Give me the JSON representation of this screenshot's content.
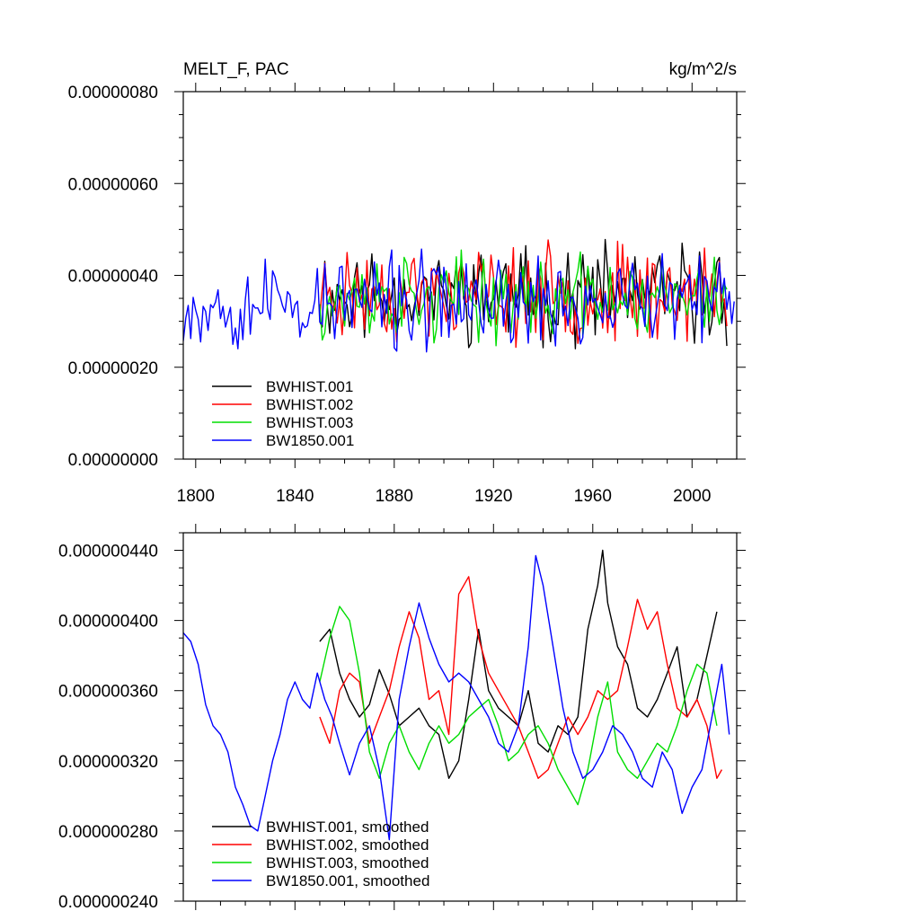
{
  "chart_data": [
    {
      "type": "line",
      "title": "MELT_F, PAC",
      "units": "kg/m^2/s",
      "xlim": [
        1795,
        2018
      ],
      "ylim": [
        0.0,
        8e-07
      ],
      "x_ticks": [
        1800,
        1840,
        1880,
        1920,
        1960,
        2000
      ],
      "x_tick_labels": [
        "1800",
        "1840",
        "1880",
        "1920",
        "1960",
        "2000"
      ],
      "y_ticks": [
        0.0,
        2e-07,
        4e-07,
        6e-07,
        8e-07
      ],
      "y_tick_labels": [
        "0.00000000",
        "0.00000020",
        "0.00000040",
        "0.00000060",
        "0.00000080"
      ],
      "legend_position": "bottom-left",
      "grid": false,
      "series": [
        {
          "name": "BWHIST.001",
          "color": "#000000",
          "x_start": 1850,
          "x_end": 2014,
          "mean": 3.6e-07,
          "amp": 9e-08,
          "seed": 11
        },
        {
          "name": "BWHIST.002",
          "color": "#ff0000",
          "x_start": 1850,
          "x_end": 2014,
          "mean": 3.6e-07,
          "amp": 9e-08,
          "seed": 23
        },
        {
          "name": "BWHIST.003",
          "color": "#00dd00",
          "x_start": 1850,
          "x_end": 2014,
          "mean": 3.5e-07,
          "amp": 8e-08,
          "seed": 37
        },
        {
          "name": "BW1850.001",
          "color": "#0000ff",
          "x_start": 1795,
          "x_end": 2017,
          "mean": 3.4e-07,
          "amp": 9e-08,
          "seed": 53
        }
      ]
    },
    {
      "type": "line",
      "xlim": [
        1795,
        2018
      ],
      "ylim": [
        2.4e-07,
        4.5e-07
      ],
      "x_ticks": [
        1800,
        1840,
        1880,
        1920,
        1960,
        2000
      ],
      "y_ticks": [
        2.4e-07,
        2.8e-07,
        3.2e-07,
        3.6e-07,
        4e-07,
        4.4e-07
      ],
      "y_tick_labels": [
        "0.000000240",
        "0.000000280",
        "0.000000320",
        "0.000000360",
        "0.000000400",
        "0.000000440"
      ],
      "legend_position": "bottom-left",
      "grid": false,
      "series": [
        {
          "name": "BWHIST.001, smoothed",
          "color": "#000000",
          "x": [
            1850,
            1854,
            1858,
            1862,
            1866,
            1870,
            1874,
            1878,
            1882,
            1886,
            1890,
            1894,
            1898,
            1902,
            1906,
            1910,
            1914,
            1918,
            1922,
            1926,
            1930,
            1934,
            1938,
            1942,
            1946,
            1950,
            1954,
            1958,
            1962,
            1964,
            1966,
            1970,
            1974,
            1978,
            1982,
            1986,
            1990,
            1994,
            1998,
            2002,
            2006,
            2010
          ],
          "y": [
            3.88e-07,
            3.95e-07,
            3.7e-07,
            3.55e-07,
            3.45e-07,
            3.52e-07,
            3.72e-07,
            3.58e-07,
            3.4e-07,
            3.45e-07,
            3.5e-07,
            3.4e-07,
            3.35e-07,
            3.1e-07,
            3.2e-07,
            3.55e-07,
            3.95e-07,
            3.6e-07,
            3.5e-07,
            3.45e-07,
            3.4e-07,
            3.6e-07,
            3.3e-07,
            3.25e-07,
            3.4e-07,
            3.35e-07,
            3.45e-07,
            3.95e-07,
            4.2e-07,
            4.4e-07,
            4.1e-07,
            3.85e-07,
            3.75e-07,
            3.5e-07,
            3.45e-07,
            3.55e-07,
            3.7e-07,
            3.85e-07,
            3.45e-07,
            3.55e-07,
            3.8e-07,
            4.05e-07
          ]
        },
        {
          "name": "BWHIST.002, smoothed",
          "color": "#ff0000",
          "x": [
            1850,
            1854,
            1858,
            1862,
            1866,
            1870,
            1874,
            1878,
            1882,
            1886,
            1890,
            1894,
            1898,
            1902,
            1906,
            1910,
            1914,
            1918,
            1922,
            1926,
            1930,
            1934,
            1938,
            1942,
            1946,
            1950,
            1954,
            1958,
            1962,
            1966,
            1970,
            1974,
            1978,
            1982,
            1986,
            1990,
            1994,
            1998,
            2002,
            2006,
            2010,
            2012
          ],
          "y": [
            3.45e-07,
            3.3e-07,
            3.6e-07,
            3.7e-07,
            3.65e-07,
            3.3e-07,
            3.45e-07,
            3.6e-07,
            3.85e-07,
            4.05e-07,
            3.9e-07,
            3.55e-07,
            3.6e-07,
            3.35e-07,
            4.15e-07,
            4.25e-07,
            3.9e-07,
            3.7e-07,
            3.6e-07,
            3.5e-07,
            3.4e-07,
            3.25e-07,
            3.1e-07,
            3.15e-07,
            3.3e-07,
            3.45e-07,
            3.35e-07,
            3.45e-07,
            3.6e-07,
            3.55e-07,
            3.6e-07,
            3.85e-07,
            4.12e-07,
            3.95e-07,
            4.05e-07,
            3.75e-07,
            3.5e-07,
            3.45e-07,
            3.55e-07,
            3.4e-07,
            3.1e-07,
            3.15e-07
          ]
        },
        {
          "name": "BWHIST.003, smoothed",
          "color": "#00dd00",
          "x": [
            1850,
            1854,
            1858,
            1862,
            1866,
            1870,
            1874,
            1878,
            1882,
            1886,
            1890,
            1894,
            1898,
            1902,
            1906,
            1910,
            1914,
            1918,
            1922,
            1926,
            1930,
            1934,
            1938,
            1942,
            1946,
            1950,
            1954,
            1958,
            1962,
            1966,
            1970,
            1974,
            1978,
            1982,
            1986,
            1990,
            1994,
            1998,
            2002,
            2006,
            2010
          ],
          "y": [
            3.65e-07,
            3.9e-07,
            4.08e-07,
            4e-07,
            3.7e-07,
            3.25e-07,
            3.1e-07,
            3.3e-07,
            3.4e-07,
            3.25e-07,
            3.15e-07,
            3.3e-07,
            3.4e-07,
            3.3e-07,
            3.35e-07,
            3.45e-07,
            3.5e-07,
            3.55e-07,
            3.4e-07,
            3.2e-07,
            3.25e-07,
            3.35e-07,
            3.4e-07,
            3.3e-07,
            3.15e-07,
            3.05e-07,
            2.95e-07,
            3.15e-07,
            3.45e-07,
            3.65e-07,
            3.25e-07,
            3.15e-07,
            3.1e-07,
            3.2e-07,
            3.3e-07,
            3.25e-07,
            3.4e-07,
            3.6e-07,
            3.75e-07,
            3.7e-07,
            3.4e-07
          ]
        },
        {
          "name": "BW1850.001, smoothed",
          "color": "#0000ff",
          "x": [
            1795,
            1798,
            1801,
            1804,
            1807,
            1810,
            1813,
            1816,
            1819,
            1822,
            1825,
            1828,
            1831,
            1834,
            1837,
            1840,
            1843,
            1846,
            1849,
            1852,
            1855,
            1858,
            1862,
            1866,
            1870,
            1874,
            1878,
            1882,
            1886,
            1890,
            1894,
            1898,
            1902,
            1906,
            1910,
            1914,
            1918,
            1922,
            1926,
            1930,
            1934,
            1937,
            1940,
            1944,
            1948,
            1952,
            1956,
            1960,
            1964,
            1968,
            1972,
            1976,
            1980,
            1984,
            1988,
            1992,
            1996,
            2000,
            2004,
            2008,
            2012,
            2015
          ],
          "y": [
            3.93e-07,
            3.88e-07,
            3.75e-07,
            3.52e-07,
            3.4e-07,
            3.35e-07,
            3.25e-07,
            3.05e-07,
            2.95e-07,
            2.83e-07,
            2.8e-07,
            3e-07,
            3.2e-07,
            3.35e-07,
            3.55e-07,
            3.65e-07,
            3.55e-07,
            3.5e-07,
            3.7e-07,
            3.55e-07,
            3.45e-07,
            3.3e-07,
            3.12e-07,
            3.3e-07,
            3.4e-07,
            3.15e-07,
            2.75e-07,
            3.55e-07,
            3.85e-07,
            4.1e-07,
            3.9e-07,
            3.75e-07,
            3.65e-07,
            3.7e-07,
            3.65e-07,
            3.55e-07,
            3.45e-07,
            3.3e-07,
            3.25e-07,
            3.4e-07,
            3.85e-07,
            4.37e-07,
            4.2e-07,
            3.85e-07,
            3.5e-07,
            3.25e-07,
            3.1e-07,
            3.15e-07,
            3.25e-07,
            3.4e-07,
            3.35e-07,
            3.25e-07,
            3.1e-07,
            3.05e-07,
            3.25e-07,
            3.15e-07,
            2.9e-07,
            3.05e-07,
            3.15e-07,
            3.45e-07,
            3.75e-07,
            3.35e-07
          ]
        }
      ]
    }
  ]
}
